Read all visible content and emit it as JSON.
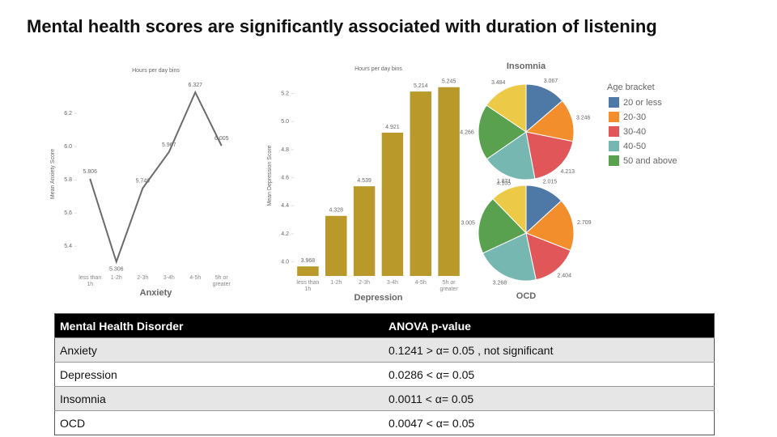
{
  "title": "Mental health scores are significantly associated with duration of listening",
  "chart_data": [
    {
      "type": "line",
      "title": "Anxiety",
      "subtitle": "Hours per day bins",
      "y_label": "Mean Anxiety Score",
      "categories": [
        "less than 1h",
        "1-2h",
        "2-3h",
        "3-4h",
        "4-5h",
        "5h or greater"
      ],
      "values": [
        5.806,
        5.306,
        5.749,
        5.967,
        6.327,
        6.005
      ],
      "color": "#6b6b6b",
      "ylim": [
        5.25,
        6.42
      ],
      "yticks": [
        5.4,
        5.6,
        5.8,
        {
          "value": 6,
          "label": "6.0"
        },
        6.2
      ],
      "grid": false
    },
    {
      "type": "bar",
      "title": "Depression",
      "subtitle": "Hours per day bins",
      "y_label": "Mean Depression Score",
      "categories": [
        "less than 1h",
        "1-2h",
        "2-3h",
        "3-4h",
        "4-5h",
        "5h or greater"
      ],
      "values": [
        3.968,
        4.328,
        4.539,
        4.921,
        5.214,
        5.245
      ],
      "color": "#b8992a",
      "ylim": [
        3.9,
        5.33
      ],
      "yticks": [
        {
          "value": 4,
          "label": "4.0"
        },
        4.2,
        4.4,
        4.6,
        4.8,
        {
          "value": 5,
          "label": "5.0"
        },
        5.2
      ],
      "grid": false
    },
    {
      "type": "pie",
      "title": "Insomnia",
      "legend_title": "Age bracket",
      "categories": [
        "20 or less",
        "20-30",
        "30-40",
        "40-50",
        "50 and above",
        null
      ],
      "colors": [
        "#4e79a7",
        "#f28e2b",
        "#e15759",
        "#76b7b2",
        "#59a14f",
        "#edc948"
      ],
      "values": [
        3.067,
        3.246,
        4.213,
        4.105,
        4.266,
        3.484
      ]
    },
    {
      "type": "pie",
      "title": "OCD",
      "values": [
        2.015,
        2.709,
        2.404,
        3.268,
        3.005,
        1.871
      ]
    }
  ],
  "table": {
    "header": [
      "Mental Health Disorder",
      "ANOVA p-value"
    ],
    "rows": [
      [
        "Anxiety",
        "0.1241 >  α= 0.05 , not significant"
      ],
      [
        "Depression",
        "0.0286 < α= 0.05"
      ],
      [
        "Insomnia",
        "0.0011 < α= 0.05"
      ],
      [
        "OCD",
        "0.0047 < α= 0.05"
      ]
    ]
  }
}
